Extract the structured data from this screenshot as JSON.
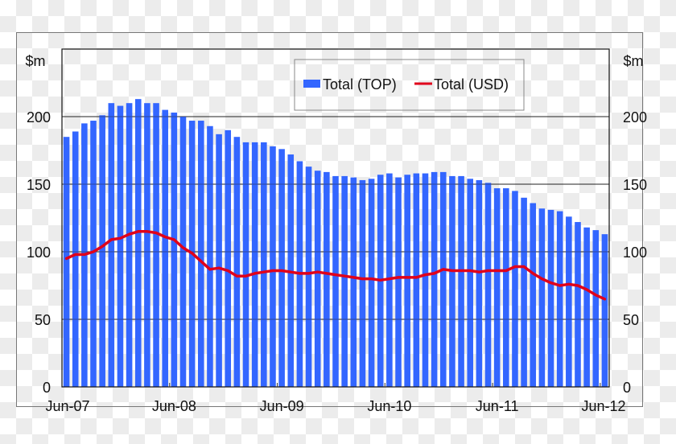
{
  "chart_data": {
    "type": "bar+line",
    "title": "",
    "ylabel_left": "$m",
    "ylabel_right": "$m",
    "ylim": [
      0,
      250
    ],
    "yticks": [
      0,
      50,
      100,
      150,
      200
    ],
    "grid": "horizontal at 50, 100, 150, 200",
    "xtick_labels": [
      "Jun-07",
      "Jun-08",
      "Jun-09",
      "Jun-10",
      "Jun-11",
      "Jun-12"
    ],
    "legend_position": "top center (inside plot)",
    "x_start": "Jun-07",
    "x_end": "Jun-12",
    "frequency": "monthly",
    "series": [
      {
        "name": "Total (TOP)",
        "type": "bar",
        "color": "#3366ff",
        "values": [
          185,
          189,
          195,
          197,
          201,
          210,
          208,
          210,
          213,
          210,
          210,
          205,
          203,
          200,
          197,
          197,
          193,
          187,
          190,
          185,
          181,
          181,
          181,
          178,
          176,
          172,
          167,
          163,
          160,
          159,
          156,
          156,
          155,
          153,
          154,
          157,
          158,
          155,
          157,
          158,
          158,
          159,
          159,
          156,
          156,
          154,
          153,
          151,
          147,
          147,
          145,
          140,
          136,
          132,
          131,
          130,
          126,
          122,
          118,
          116,
          113
        ]
      },
      {
        "name": "Total (USD)",
        "type": "line",
        "color": "#e0001b",
        "values": [
          95,
          98,
          98,
          100,
          104,
          109,
          110,
          113,
          115,
          115,
          114,
          111,
          109,
          103,
          99,
          93,
          87,
          88,
          86,
          82,
          82,
          84,
          85,
          86,
          86,
          85,
          84,
          84,
          85,
          84,
          83,
          82,
          81,
          80,
          80,
          79,
          80,
          81,
          81,
          81,
          83,
          84,
          87,
          86,
          86,
          86,
          85,
          86,
          86,
          86,
          89,
          89,
          84,
          80,
          77,
          75,
          76,
          75,
          72,
          68,
          65
        ]
      }
    ]
  },
  "legend": {
    "items": [
      {
        "label": "Total (TOP)",
        "color": "#3366ff",
        "shape": "box"
      },
      {
        "label": "Total (USD)",
        "color": "#e0001b",
        "shape": "line"
      }
    ]
  },
  "axes": {
    "left_unit": "$m",
    "right_unit": "$m",
    "ticks": [
      "0",
      "50",
      "100",
      "150",
      "200"
    ],
    "x_labels": [
      "Jun-07",
      "Jun-08",
      "Jun-09",
      "Jun-10",
      "Jun-11",
      "Jun-12"
    ]
  }
}
